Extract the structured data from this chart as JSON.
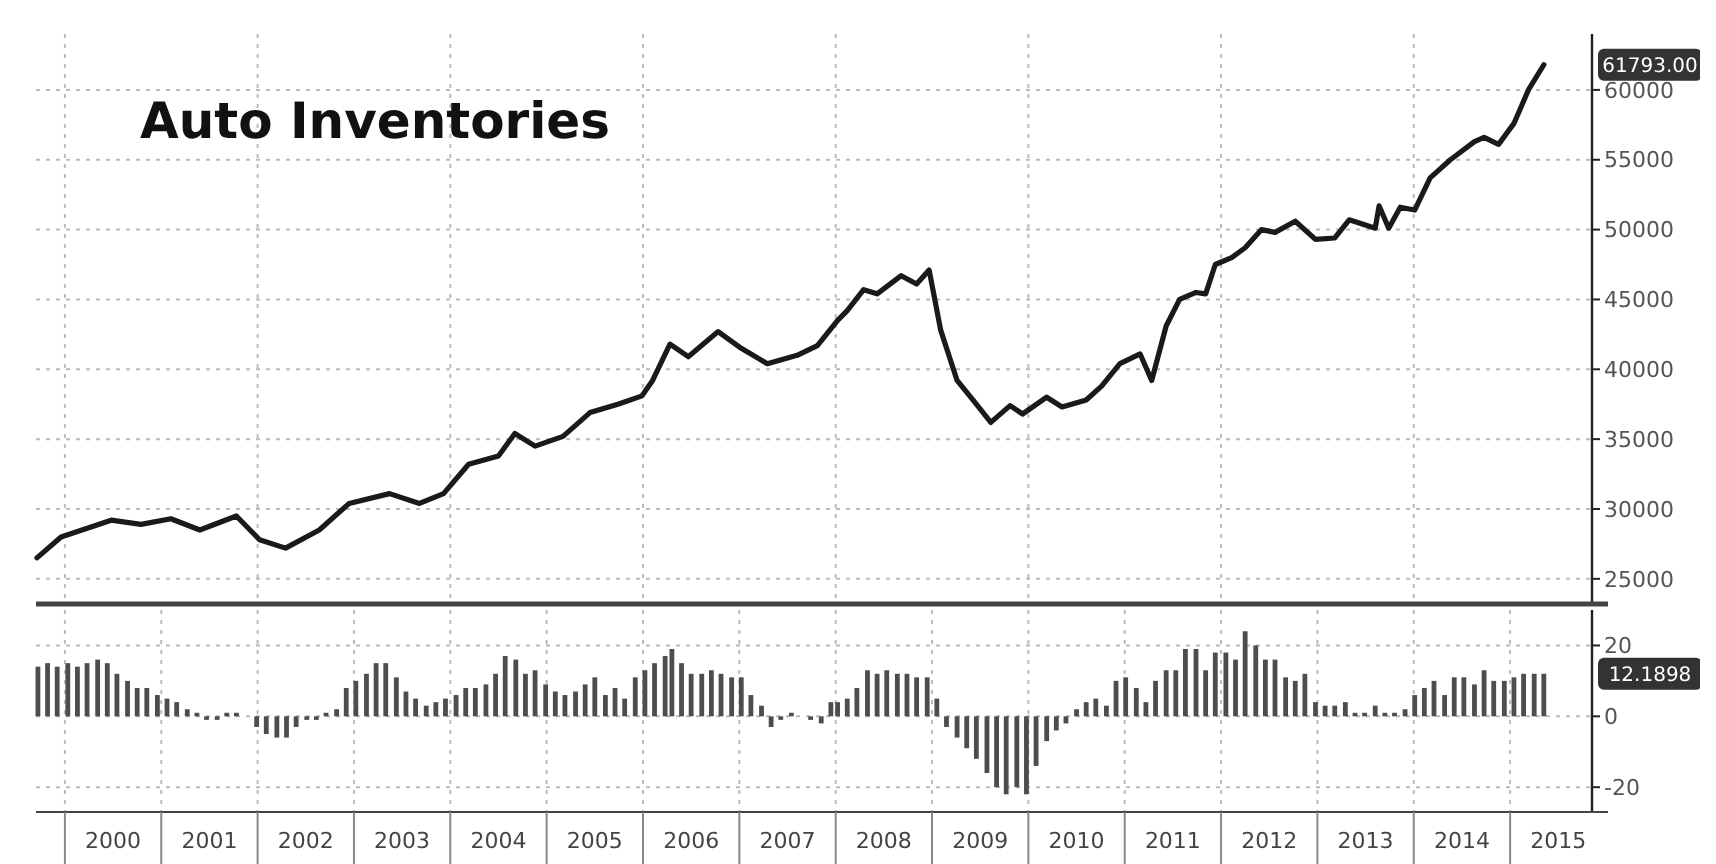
{
  "chart_data": [
    {
      "type": "line",
      "title": "Auto Inventories",
      "x": [
        1999.71,
        1999.96,
        2000.48,
        2000.79,
        2001.1,
        2001.4,
        2001.78,
        2002.02,
        2002.29,
        2002.64,
        2002.95,
        2003.37,
        2003.68,
        2003.93,
        2004.19,
        2004.5,
        2004.67,
        2004.88,
        2005.17,
        2005.45,
        2005.74,
        2005.99,
        2006.1,
        2006.28,
        2006.47,
        2006.78,
        2007.02,
        2007.29,
        2007.6,
        2007.81,
        2008.02,
        2008.12,
        2008.29,
        2008.43,
        2008.68,
        2008.84,
        2008.97,
        2009.09,
        2009.26,
        2009.46,
        2009.61,
        2009.81,
        2009.94,
        2010.19,
        2010.35,
        2010.6,
        2010.76,
        2010.95,
        2011.16,
        2011.28,
        2011.43,
        2011.57,
        2011.74,
        2011.84,
        2011.94,
        2012.11,
        2012.25,
        2012.42,
        2012.56,
        2012.77,
        2012.98,
        2013.18,
        2013.33,
        2013.6,
        2013.64,
        2013.74,
        2013.86,
        2014.01,
        2014.17,
        2014.38,
        2014.63,
        2014.73,
        2014.88,
        2015.04,
        2015.19,
        2015.35
      ],
      "series": [
        {
          "color": "#1a1a1a",
          "values": [
            26500,
            28000,
            29200,
            28900,
            29300,
            28500,
            29500,
            27800,
            27200,
            28500,
            30400,
            31100,
            30400,
            31100,
            33200,
            33800,
            35400,
            34500,
            35200,
            36900,
            37500,
            38100,
            39200,
            41800,
            40900,
            42700,
            41500,
            40400,
            41000,
            41700,
            43500,
            44200,
            45700,
            45400,
            46700,
            46100,
            47100,
            42800,
            39200,
            37500,
            36200,
            37400,
            36800,
            38000,
            37300,
            37800,
            38800,
            40400,
            41100,
            39200,
            43100,
            45000,
            45500,
            45400,
            47500,
            48000,
            48700,
            50000,
            49800,
            50600,
            49300,
            49400,
            50700,
            50100,
            51700,
            50100,
            51600,
            51400,
            53700,
            55000,
            56300,
            56600,
            56100,
            57600,
            60000,
            61800
          ]
        }
      ],
      "xlim": [
        1999.7,
        2015.85
      ],
      "ylim": [
        23200,
        64000
      ],
      "yticks": [
        25000,
        30000,
        35000,
        40000,
        45000,
        50000,
        55000,
        60000
      ],
      "xticks": [
        {
          "value": 2000,
          "label": null
        },
        {
          "value": 2002,
          "label": null
        },
        {
          "value": 2004,
          "label": null
        },
        {
          "value": 2006,
          "label": null
        },
        {
          "value": 2008,
          "label": null
        },
        {
          "value": 2010,
          "label": null
        },
        {
          "value": 2012,
          "label": null
        },
        {
          "value": 2014,
          "label": null
        }
      ],
      "tick_labels": "y",
      "grid": true,
      "line_style": "solid",
      "marker": "none",
      "annotations": [
        "61793.00"
      ]
    },
    {
      "type": "bar",
      "x": [
        1999.72,
        1999.82,
        1999.92,
        2000.03,
        2000.13,
        2000.23,
        2000.34,
        2000.44,
        2000.54,
        2000.65,
        2000.75,
        2000.85,
        2000.96,
        2001.06,
        2001.16,
        2001.27,
        2001.37,
        2001.47,
        2001.58,
        2001.68,
        2001.78,
        2001.89,
        2001.99,
        2002.09,
        2002.2,
        2002.3,
        2002.4,
        2002.51,
        2002.61,
        2002.71,
        2002.82,
        2002.92,
        2003.02,
        2003.13,
        2003.23,
        2003.33,
        2003.44,
        2003.54,
        2003.64,
        2003.75,
        2003.85,
        2003.95,
        2004.06,
        2004.16,
        2004.26,
        2004.37,
        2004.47,
        2004.57,
        2004.68,
        2004.78,
        2004.88,
        2004.99,
        2005.09,
        2005.19,
        2005.3,
        2005.4,
        2005.5,
        2005.61,
        2005.71,
        2005.81,
        2005.92,
        2006.02,
        2006.12,
        2006.23,
        2006.3,
        2006.4,
        2006.5,
        2006.61,
        2006.71,
        2006.81,
        2006.92,
        2007.02,
        2007.12,
        2007.23,
        2007.33,
        2007.43,
        2007.54,
        2007.64,
        2007.74,
        2007.85,
        2007.95,
        2008.02,
        2008.12,
        2008.22,
        2008.33,
        2008.43,
        2008.53,
        2008.64,
        2008.74,
        2008.84,
        2008.95,
        2009.05,
        2009.15,
        2009.26,
        2009.36,
        2009.46,
        2009.57,
        2009.67,
        2009.77,
        2009.88,
        2009.98,
        2010.08,
        2010.19,
        2010.29,
        2010.39,
        2010.5,
        2010.6,
        2010.7,
        2010.81,
        2010.91,
        2011.01,
        2011.12,
        2011.22,
        2011.32,
        2011.43,
        2011.53,
        2011.63,
        2011.74,
        2011.84,
        2011.94,
        2012.05,
        2012.15,
        2012.25,
        2012.36,
        2012.46,
        2012.56,
        2012.67,
        2012.77,
        2012.87,
        2012.98,
        2013.08,
        2013.18,
        2013.29,
        2013.39,
        2013.49,
        2013.6,
        2013.7,
        2013.8,
        2013.91,
        2014.01,
        2014.11,
        2014.21,
        2014.32,
        2014.42,
        2014.52,
        2014.63,
        2014.73,
        2014.83,
        2014.94,
        2015.04,
        2015.14,
        2015.25,
        2015.35
      ],
      "series": [
        {
          "color": "#4d4d4d",
          "values": [
            14,
            15,
            14,
            15,
            14,
            15,
            16,
            15,
            12,
            10,
            8,
            8,
            6,
            5,
            4,
            2,
            1,
            -1,
            -1,
            1,
            1,
            0,
            -3,
            -5,
            -6,
            -6,
            -3,
            -1,
            -1,
            1,
            2,
            8,
            10,
            12,
            15,
            15,
            11,
            7,
            5,
            3,
            4,
            5,
            6,
            8,
            8,
            9,
            12,
            17,
            16,
            12,
            13,
            9,
            7,
            6,
            7,
            9,
            11,
            6,
            8,
            5,
            11,
            13,
            15,
            17,
            19,
            15,
            12,
            12,
            13,
            12,
            11,
            11,
            6,
            3,
            -3,
            -1,
            1,
            0,
            -1,
            -2,
            4,
            4,
            5,
            8,
            13,
            12,
            13,
            12,
            12,
            11,
            11,
            5,
            -3,
            -6,
            -9,
            -12,
            -16,
            -20,
            -22,
            -20,
            -22,
            -14,
            -7,
            -4,
            -2,
            2,
            4,
            5,
            3,
            10,
            11,
            8,
            4,
            10,
            13,
            13,
            19,
            19,
            13,
            18,
            18,
            16,
            24,
            20,
            16,
            16,
            11,
            10,
            12,
            4,
            3,
            3,
            4,
            1,
            1,
            3,
            1,
            1,
            2,
            6,
            8,
            10,
            6,
            11,
            11,
            9,
            13,
            10,
            10,
            11,
            12,
            12,
            12
          ]
        }
      ],
      "xlim": [
        1999.7,
        2015.85
      ],
      "ylim": [
        -27,
        30
      ],
      "yticks": [
        -20,
        0,
        20
      ],
      "xticks": [
        {
          "value": 2000,
          "label": null
        },
        {
          "value": 2000.5,
          "label": "2000"
        },
        {
          "value": 2001,
          "label": null
        },
        {
          "value": 2001.5,
          "label": "2001"
        },
        {
          "value": 2002,
          "label": null
        },
        {
          "value": 2002.5,
          "label": "2002"
        },
        {
          "value": 2003,
          "label": null
        },
        {
          "value": 2003.5,
          "label": "2003"
        },
        {
          "value": 2004,
          "label": null
        },
        {
          "value": 2004.5,
          "label": "2004"
        },
        {
          "value": 2005,
          "label": null
        },
        {
          "value": 2005.5,
          "label": "2005"
        },
        {
          "value": 2006,
          "label": null
        },
        {
          "value": 2006.5,
          "label": "2006"
        },
        {
          "value": 2007,
          "label": null
        },
        {
          "value": 2007.5,
          "label": "2007"
        },
        {
          "value": 2008,
          "label": null
        },
        {
          "value": 2008.5,
          "label": "2008"
        },
        {
          "value": 2009,
          "label": null
        },
        {
          "value": 2009.5,
          "label": "2009"
        },
        {
          "value": 2010,
          "label": null
        },
        {
          "value": 2010.5,
          "label": "2010"
        },
        {
          "value": 2011,
          "label": null
        },
        {
          "value": 2011.5,
          "label": "2011"
        },
        {
          "value": 2012,
          "label": null
        },
        {
          "value": 2012.5,
          "label": "2012"
        },
        {
          "value": 2013,
          "label": null
        },
        {
          "value": 2013.5,
          "label": "2013"
        },
        {
          "value": 2014,
          "label": null
        },
        {
          "value": 2014.5,
          "label": "2014"
        },
        {
          "value": 2015,
          "label": null
        },
        {
          "value": 2015.5,
          "label": "2015"
        }
      ],
      "grid": true,
      "annotations": [
        "12.1898"
      ]
    }
  ]
}
